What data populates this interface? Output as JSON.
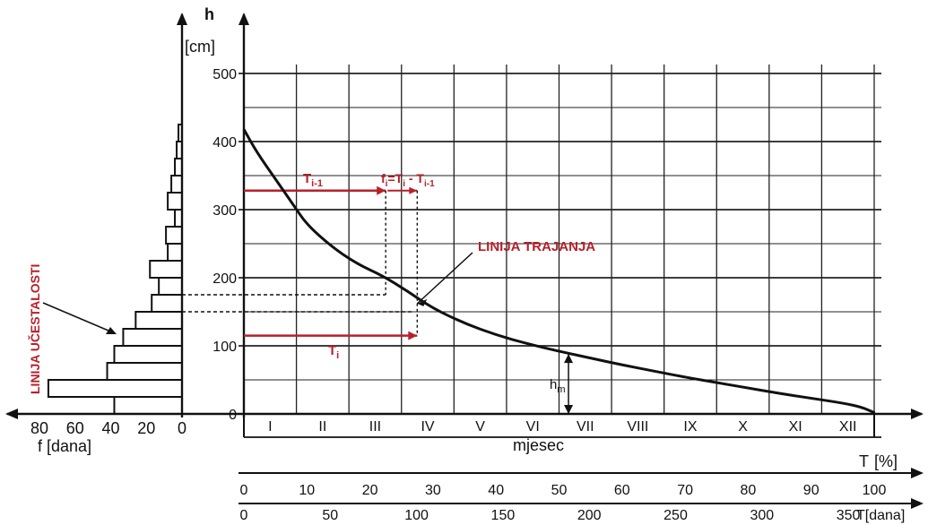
{
  "chart_data": [
    {
      "type": "line",
      "series": [
        {
          "name": "LINIJA TRAJANJA",
          "x": [
            0,
            2,
            5,
            8,
            10,
            14,
            18,
            22,
            26,
            30,
            35,
            40,
            45,
            50,
            55,
            60,
            65,
            70,
            75,
            80,
            85,
            90,
            95,
            98,
            100
          ],
          "values": [
            418,
            385,
            345,
            305,
            278,
            245,
            220,
            203,
            180,
            155,
            133,
            116,
            103,
            92,
            82,
            72,
            63,
            54,
            46,
            38,
            30,
            23,
            16,
            10,
            2
          ]
        }
      ],
      "ylabel": "h",
      "yunit": "[cm]",
      "ylim": [
        0,
        500
      ],
      "yticks": [
        "0",
        "100",
        "200",
        "300",
        "400",
        "500"
      ],
      "xlabel": "T",
      "xunit": "[%]",
      "xlim": [
        0,
        100
      ],
      "xticks": [
        "0",
        "10",
        "20",
        "30",
        "40",
        "50",
        "60",
        "70",
        "80",
        "90",
        "100"
      ],
      "xlabel_days": "T[dana]",
      "xticks_days": [
        "0",
        "50",
        "100",
        "150",
        "200",
        "250",
        "300",
        "350"
      ],
      "months": [
        "I",
        "II",
        "III",
        "IV",
        "V",
        "VI",
        "VII",
        "VIII",
        "IX",
        "X",
        "XI",
        "XII"
      ],
      "month_label": "mjesec",
      "grid": true,
      "annotations": {
        "t_prev": "T",
        "t_prev_sub": "i-1",
        "fi_f": "f",
        "fi_i": "i",
        "fi_eq": "=T",
        "fi_minus": " - T",
        "fi_sub_prev": "i-1",
        "ti_main": "T",
        "ti_sub": "i",
        "hm_main": "h",
        "hm_sub": "m",
        "duration_label": "LINIJA TRAJANJA",
        "frequency_label": "LINIJA UČESTALOSTI"
      }
    },
    {
      "type": "bar",
      "orientation": "horizontal",
      "xlabel": "f [dana]",
      "xticks": [
        "80",
        "60",
        "40",
        "20",
        "0"
      ],
      "xlim": [
        0,
        80
      ],
      "bins": [
        {
          "h_low": 0,
          "h_high": 25,
          "f": 38
        },
        {
          "h_low": 25,
          "h_high": 50,
          "f": 75
        },
        {
          "h_low": 50,
          "h_high": 75,
          "f": 42
        },
        {
          "h_low": 75,
          "h_high": 100,
          "f": 38
        },
        {
          "h_low": 100,
          "h_high": 125,
          "f": 33
        },
        {
          "h_low": 125,
          "h_high": 150,
          "f": 26
        },
        {
          "h_low": 150,
          "h_high": 175,
          "f": 17
        },
        {
          "h_low": 175,
          "h_high": 200,
          "f": 13
        },
        {
          "h_low": 200,
          "h_high": 225,
          "f": 18
        },
        {
          "h_low": 225,
          "h_high": 250,
          "f": 8
        },
        {
          "h_low": 250,
          "h_high": 275,
          "f": 9
        },
        {
          "h_low": 275,
          "h_high": 300,
          "f": 4
        },
        {
          "h_low": 300,
          "h_high": 325,
          "f": 8
        },
        {
          "h_low": 325,
          "h_high": 350,
          "f": 6
        },
        {
          "h_low": 350,
          "h_high": 375,
          "f": 4
        },
        {
          "h_low": 375,
          "h_high": 400,
          "f": 3
        },
        {
          "h_low": 400,
          "h_high": 425,
          "f": 2
        }
      ]
    }
  ]
}
